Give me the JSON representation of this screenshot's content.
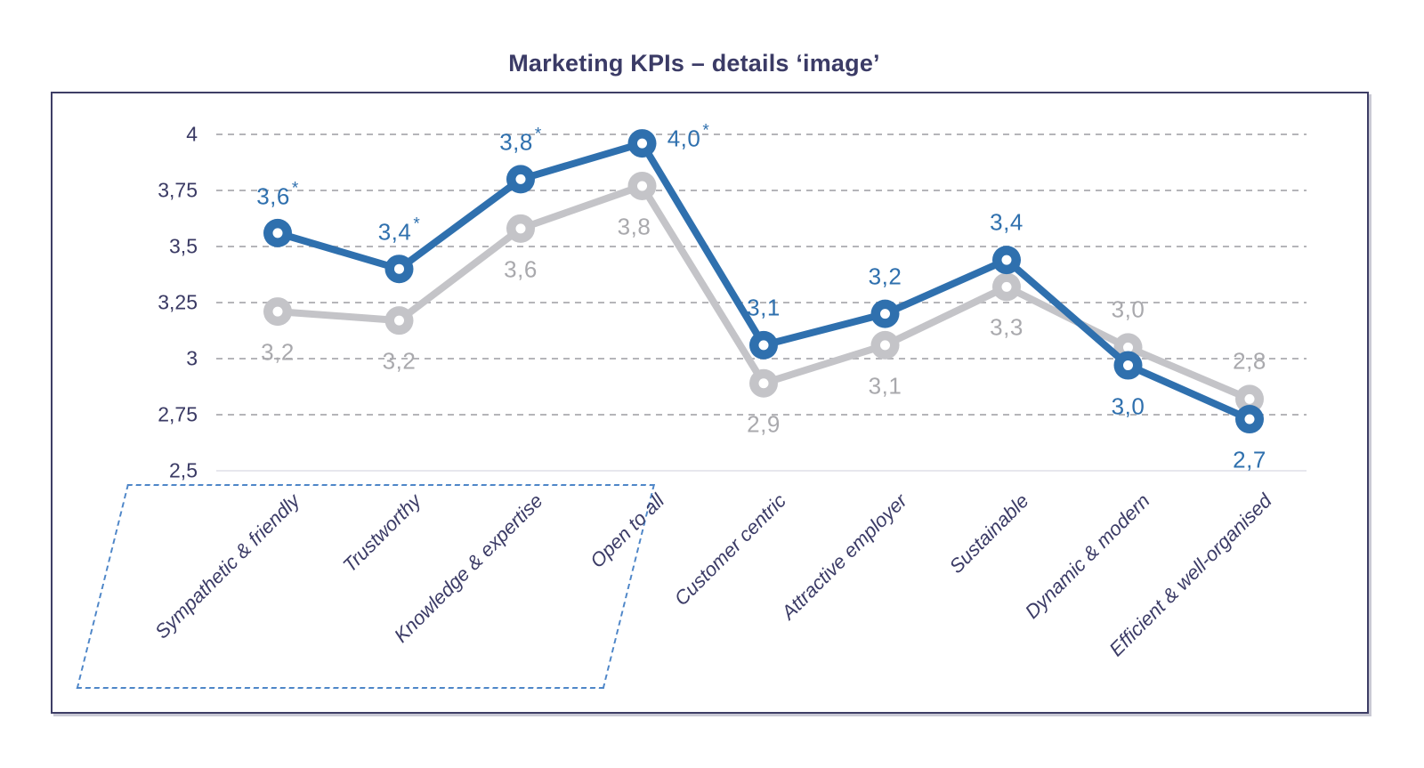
{
  "page": {
    "background_color": "#ffffff"
  },
  "chart_data": {
    "type": "line",
    "title": "Marketing KPIs – details ‘image’",
    "title_color": "#3B3B66",
    "legend": "none",
    "categories": [
      "Sympathetic & friendly",
      "Trustworthy",
      "Knowledge & expertise",
      "Open to all",
      "Customer centric",
      "Attractive employer",
      "Sustainable",
      "Dynamic & modern",
      "Efficient & well-organised"
    ],
    "y_axis": {
      "tick_labels": [
        "4",
        "3,75",
        "3,5",
        "3,25",
        "3",
        "2,75",
        "2,5"
      ],
      "tick_values": [
        4,
        3.75,
        3.5,
        3.25,
        3,
        2.75,
        2.5
      ],
      "min": 2.5,
      "max": 4,
      "decimal_separator": ",",
      "gridlines": "dashed-horizontal",
      "gridline_color": "#B5B5B9",
      "baseline_color": "#E7E7ED",
      "label_color": "#3A3A64"
    },
    "series": [
      {
        "id": "gray",
        "color": "#C4C4C8",
        "label_color": "#A9A9AD",
        "point_labels": [
          "3,2",
          "3,2",
          "3,6",
          "3,8",
          "2,9",
          "3,1",
          "3,3",
          "3,0",
          "2,8"
        ],
        "values": [
          3.2,
          3.2,
          3.6,
          3.8,
          2.9,
          3.1,
          3.3,
          3.0,
          2.8
        ],
        "plot_values": [
          3.21,
          3.17,
          3.58,
          3.77,
          2.89,
          3.06,
          3.32,
          3.05,
          2.82
        ],
        "asterisks": [
          false,
          false,
          false,
          false,
          false,
          false,
          false,
          false,
          false
        ],
        "label_positions": [
          "below",
          "below",
          "below",
          "below-left",
          "below",
          "below",
          "below",
          "above",
          "above"
        ]
      },
      {
        "id": "blue",
        "color": "#2F70AE",
        "label_color": "#2F70AE",
        "point_labels": [
          "3,6",
          "3,4",
          "3,8",
          "4,0",
          "3,1",
          "3,2",
          "3,4",
          "3,0",
          "2,7"
        ],
        "values": [
          3.6,
          3.4,
          3.8,
          4.0,
          3.1,
          3.2,
          3.4,
          3.0,
          2.7
        ],
        "plot_values": [
          3.56,
          3.4,
          3.8,
          3.96,
          3.06,
          3.2,
          3.44,
          2.97,
          2.73
        ],
        "asterisks": [
          true,
          true,
          true,
          true,
          false,
          false,
          false,
          false,
          false
        ],
        "label_positions": [
          "above",
          "above",
          "above",
          "right",
          "above",
          "above",
          "above",
          "below",
          "below"
        ]
      }
    ],
    "annotation": {
      "highlight_box_categories": [
        "Sympathetic & friendly",
        "Trustworthy",
        "Knowledge & expertise",
        "Open to all"
      ],
      "highlight_box_style": "blue dashed parallelogram",
      "highlight_box_color": "#4E86C8"
    },
    "frame_color": "#3E3E66"
  }
}
